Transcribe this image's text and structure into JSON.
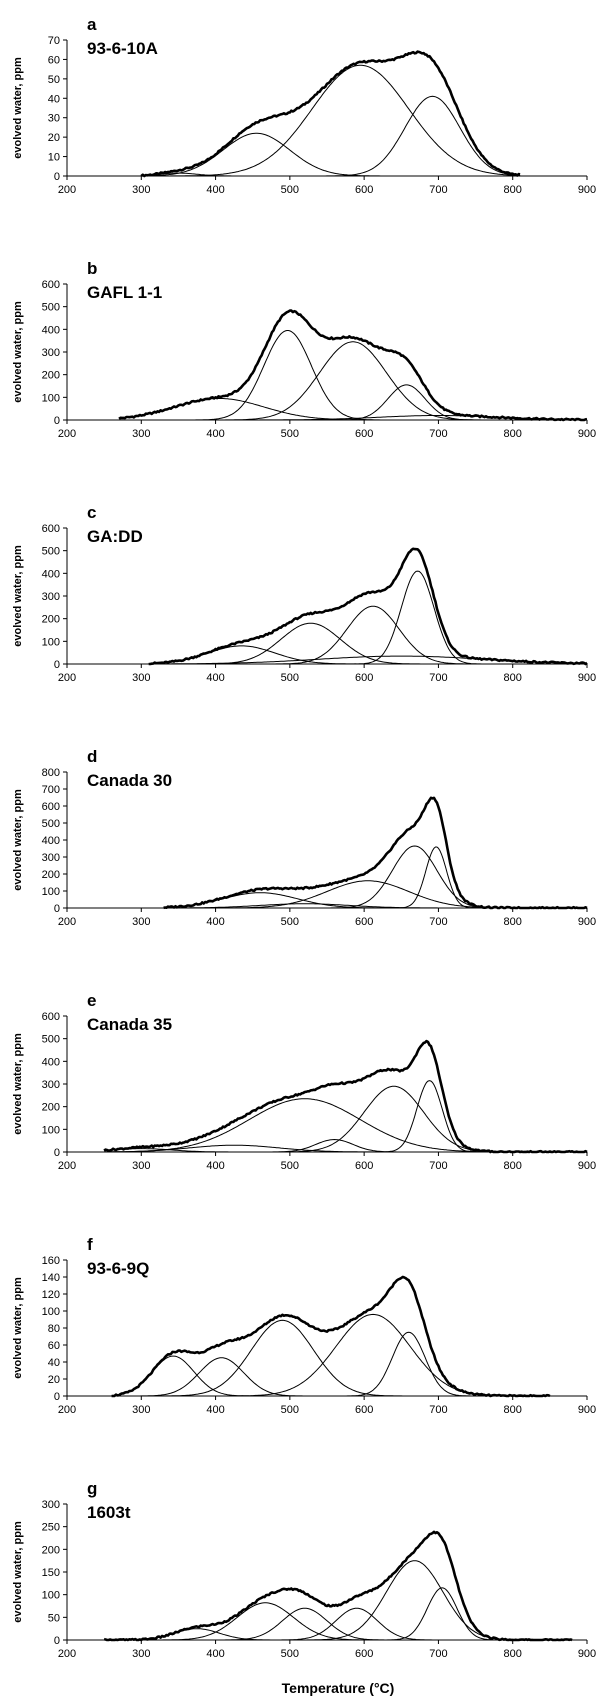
{
  "x_axis_title": "Temperature  (°C)",
  "chart_data": [
    {
      "type": "line",
      "panel": "a",
      "sample": "93-6-10A",
      "ylabel": "evolved water, ppm",
      "xlim": [
        200,
        900
      ],
      "ylim": [
        0,
        70
      ],
      "x_ticks": [
        200,
        300,
        400,
        500,
        600,
        700,
        800,
        900
      ],
      "y_ticks": [
        0,
        10,
        20,
        30,
        40,
        50,
        60,
        70
      ],
      "x_range": [
        300,
        810
      ],
      "components": [
        {
          "center": 350,
          "height": 1.5,
          "width": 25
        },
        {
          "center": 455,
          "height": 22,
          "width": 45
        },
        {
          "center": 595,
          "height": 57,
          "width": 65
        },
        {
          "center": 692,
          "height": 41,
          "width": 37
        }
      ]
    },
    {
      "type": "line",
      "panel": "b",
      "sample": "GAFL 1-1",
      "ylabel": "evolved water, ppm",
      "xlim": [
        200,
        900
      ],
      "ylim": [
        0,
        600
      ],
      "x_ticks": [
        200,
        300,
        400,
        500,
        600,
        700,
        800,
        900
      ],
      "y_ticks": [
        0,
        100,
        200,
        300,
        400,
        500,
        600
      ],
      "x_range": [
        270,
        900
      ],
      "components": [
        {
          "center": 405,
          "height": 95,
          "width": 60
        },
        {
          "center": 497,
          "height": 395,
          "width": 32
        },
        {
          "center": 585,
          "height": 345,
          "width": 45
        },
        {
          "center": 657,
          "height": 155,
          "width": 25
        },
        {
          "center": 700,
          "height": 20,
          "width": 80
        }
      ]
    },
    {
      "type": "line",
      "panel": "c",
      "sample": "GA:DD",
      "ylabel": "evolved water, ppm",
      "xlim": [
        200,
        900
      ],
      "ylim": [
        0,
        600
      ],
      "x_ticks": [
        200,
        300,
        400,
        500,
        600,
        700,
        800,
        900
      ],
      "y_ticks": [
        0,
        100,
        200,
        300,
        400,
        500,
        600
      ],
      "x_range": [
        310,
        900
      ],
      "components": [
        {
          "center": 435,
          "height": 80,
          "width": 45
        },
        {
          "center": 528,
          "height": 180,
          "width": 40
        },
        {
          "center": 612,
          "height": 255,
          "width": 35
        },
        {
          "center": 672,
          "height": 410,
          "width": 22
        },
        {
          "center": 650,
          "height": 35,
          "width": 110
        }
      ]
    },
    {
      "type": "line",
      "panel": "d",
      "sample": "Canada 30",
      "ylabel": "evolved water, ppm",
      "xlim": [
        200,
        900
      ],
      "ylim": [
        0,
        800
      ],
      "x_ticks": [
        200,
        300,
        400,
        500,
        600,
        700,
        800,
        900
      ],
      "y_ticks": [
        0,
        100,
        200,
        300,
        400,
        500,
        600,
        700,
        800
      ],
      "x_range": [
        330,
        900
      ],
      "components": [
        {
          "center": 460,
          "height": 90,
          "width": 50
        },
        {
          "center": 605,
          "height": 160,
          "width": 55
        },
        {
          "center": 668,
          "height": 365,
          "width": 30
        },
        {
          "center": 697,
          "height": 360,
          "width": 14
        },
        {
          "center": 520,
          "height": 25,
          "width": 60
        }
      ]
    },
    {
      "type": "line",
      "panel": "e",
      "sample": "Canada 35",
      "ylabel": "evolved water, ppm",
      "xlim": [
        200,
        900
      ],
      "ylim": [
        0,
        600
      ],
      "x_ticks": [
        200,
        300,
        400,
        500,
        600,
        700,
        800,
        900
      ],
      "y_ticks": [
        0,
        100,
        200,
        300,
        400,
        500,
        600
      ],
      "x_range": [
        250,
        900
      ],
      "components": [
        {
          "center": 425,
          "height": 30,
          "width": 60
        },
        {
          "center": 520,
          "height": 235,
          "width": 75
        },
        {
          "center": 560,
          "height": 55,
          "width": 25
        },
        {
          "center": 640,
          "height": 290,
          "width": 40
        },
        {
          "center": 688,
          "height": 315,
          "width": 17
        },
        {
          "center": 300,
          "height": 15,
          "width": 40
        }
      ]
    },
    {
      "type": "line",
      "panel": "f",
      "sample": "93-6-9Q",
      "ylabel": "evolved water, ppm",
      "xlim": [
        200,
        900
      ],
      "ylim": [
        0,
        160
      ],
      "x_ticks": [
        200,
        300,
        400,
        500,
        600,
        700,
        800,
        900
      ],
      "y_ticks": [
        0,
        20,
        40,
        60,
        80,
        100,
        120,
        140,
        160
      ],
      "x_range": [
        260,
        850
      ],
      "components": [
        {
          "center": 343,
          "height": 47,
          "width": 28
        },
        {
          "center": 408,
          "height": 45,
          "width": 30
        },
        {
          "center": 490,
          "height": 89,
          "width": 42
        },
        {
          "center": 612,
          "height": 96,
          "width": 50
        },
        {
          "center": 660,
          "height": 75,
          "width": 22
        }
      ]
    },
    {
      "type": "line",
      "panel": "g",
      "sample": "1603t",
      "ylabel": "evolved water, ppm",
      "xlim": [
        200,
        900
      ],
      "ylim": [
        0,
        300
      ],
      "x_ticks": [
        200,
        300,
        400,
        500,
        600,
        700,
        800,
        900
      ],
      "y_ticks": [
        0,
        50,
        100,
        150,
        200,
        250,
        300
      ],
      "x_range": [
        250,
        880
      ],
      "components": [
        {
          "center": 375,
          "height": 25,
          "width": 30
        },
        {
          "center": 467,
          "height": 82,
          "width": 38
        },
        {
          "center": 520,
          "height": 70,
          "width": 30
        },
        {
          "center": 590,
          "height": 70,
          "width": 28
        },
        {
          "center": 668,
          "height": 175,
          "width": 38
        },
        {
          "center": 705,
          "height": 115,
          "width": 20
        }
      ]
    }
  ]
}
